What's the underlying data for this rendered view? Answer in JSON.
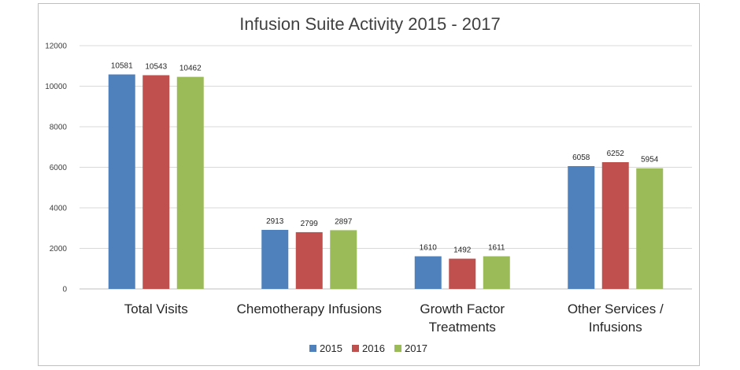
{
  "chart_data": {
    "type": "bar",
    "title": "Infusion Suite Activity 2015 - 2017",
    "xlabel": "",
    "ylabel": "",
    "ylim": [
      0,
      12000
    ],
    "yticks": [
      0,
      2000,
      4000,
      6000,
      8000,
      10000,
      12000
    ],
    "grid": true,
    "legend_position": "bottom",
    "categories": [
      [
        "Total Visits"
      ],
      [
        "Chemotherapy Infusions"
      ],
      [
        "Growth Factor",
        "Treatments"
      ],
      [
        "Other Services /",
        "Infusions"
      ]
    ],
    "series": [
      {
        "name": "2015",
        "color": "#4f81bd",
        "values": [
          10581,
          2913,
          1610,
          6058
        ]
      },
      {
        "name": "2016",
        "color": "#c0504d",
        "values": [
          10543,
          2799,
          1492,
          6252
        ]
      },
      {
        "name": "2017",
        "color": "#9bbb59",
        "values": [
          10462,
          2897,
          1611,
          5954
        ]
      }
    ],
    "colors": {
      "gridline": "#d9d9d9",
      "axis": "#bfbfbf"
    }
  }
}
